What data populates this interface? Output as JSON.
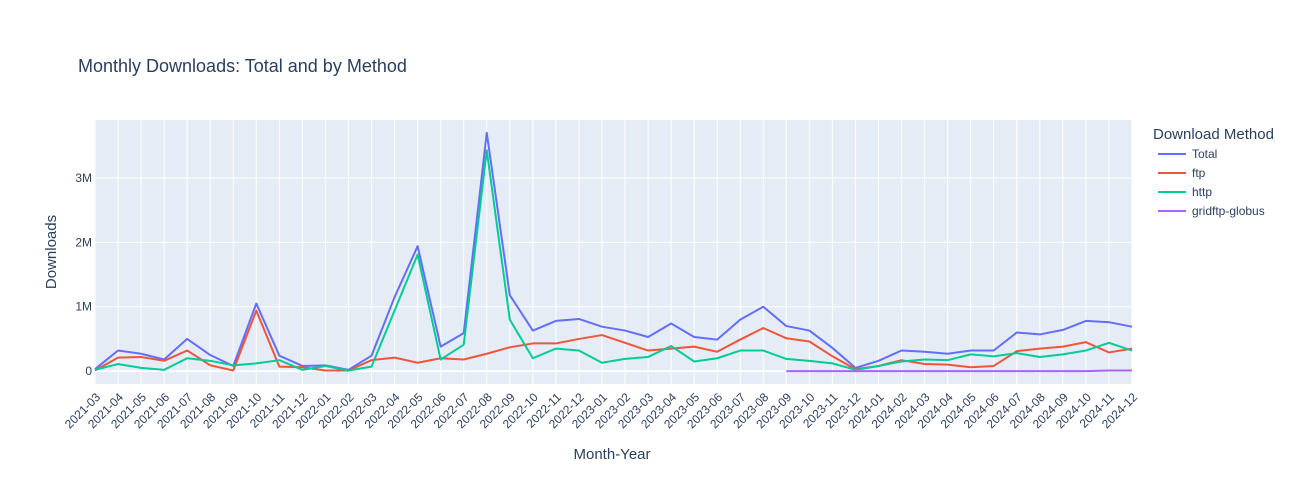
{
  "chart_data": {
    "type": "line",
    "title": "Monthly Downloads: Total and by Method",
    "xlabel": "Month-Year",
    "ylabel": "Downloads",
    "ylim": [
      -200000,
      3900000
    ],
    "y_ticks": [
      0,
      1000000,
      2000000,
      3000000
    ],
    "y_tick_labels": [
      "0",
      "1M",
      "2M",
      "3M"
    ],
    "grid": true,
    "legend_title": "Download Method",
    "legend_position": "top-right",
    "x": [
      "2021-03",
      "2021-04",
      "2021-05",
      "2021-06",
      "2021-07",
      "2021-08",
      "2021-09",
      "2021-10",
      "2021-11",
      "2021-12",
      "2022-01",
      "2022-02",
      "2022-03",
      "2022-04",
      "2022-05",
      "2022-06",
      "2022-07",
      "2022-08",
      "2022-09",
      "2022-10",
      "2022-11",
      "2022-12",
      "2023-01",
      "2023-02",
      "2023-03",
      "2023-04",
      "2023-05",
      "2023-06",
      "2023-07",
      "2023-08",
      "2023-09",
      "2023-10",
      "2023-11",
      "2023-12",
      "2024-01",
      "2024-02",
      "2024-03",
      "2024-04",
      "2024-05",
      "2024-06",
      "2024-07",
      "2024-08",
      "2024-09",
      "2024-10",
      "2024-11",
      "2024-12"
    ],
    "series": [
      {
        "name": "Total",
        "color": "#636efa",
        "values": [
          30000,
          320000,
          270000,
          180000,
          500000,
          250000,
          80000,
          1050000,
          240000,
          80000,
          90000,
          20000,
          240000,
          1150000,
          1940000,
          380000,
          590000,
          3700000,
          1180000,
          630000,
          780000,
          810000,
          690000,
          630000,
          530000,
          740000,
          530000,
          490000,
          800000,
          1000000,
          700000,
          630000,
          360000,
          50000,
          160000,
          320000,
          300000,
          270000,
          320000,
          320000,
          600000,
          570000,
          640000,
          780000,
          760000,
          690000
        ]
      },
      {
        "name": "ftp",
        "color": "#ef553b",
        "values": [
          10000,
          210000,
          220000,
          160000,
          320000,
          90000,
          10000,
          940000,
          70000,
          60000,
          10000,
          10000,
          170000,
          210000,
          130000,
          200000,
          180000,
          270000,
          370000,
          430000,
          430000,
          500000,
          560000,
          440000,
          320000,
          350000,
          380000,
          300000,
          490000,
          670000,
          510000,
          460000,
          230000,
          30000,
          80000,
          170000,
          110000,
          100000,
          60000,
          80000,
          310000,
          350000,
          380000,
          450000,
          290000,
          350000
        ]
      },
      {
        "name": "http",
        "color": "#00cc96",
        "values": [
          20000,
          110000,
          50000,
          20000,
          200000,
          160000,
          90000,
          120000,
          170000,
          20000,
          80000,
          10000,
          70000,
          940000,
          1810000,
          180000,
          410000,
          3430000,
          800000,
          200000,
          350000,
          320000,
          130000,
          190000,
          220000,
          390000,
          150000,
          200000,
          320000,
          320000,
          190000,
          160000,
          120000,
          20000,
          80000,
          150000,
          180000,
          170000,
          260000,
          230000,
          280000,
          220000,
          260000,
          320000,
          440000,
          320000
        ]
      },
      {
        "name": "gridftp-globus",
        "color": "#ab63fa",
        "x": [
          "2023-09",
          "2023-10",
          "2023-11",
          "2023-12",
          "2024-01",
          "2024-02",
          "2024-03",
          "2024-04",
          "2024-05",
          "2024-06",
          "2024-07",
          "2024-08",
          "2024-09",
          "2024-10",
          "2024-11",
          "2024-12"
        ],
        "values": [
          0,
          0,
          0,
          0,
          0,
          0,
          0,
          0,
          0,
          0,
          0,
          0,
          0,
          0,
          10000,
          10000
        ]
      }
    ]
  }
}
